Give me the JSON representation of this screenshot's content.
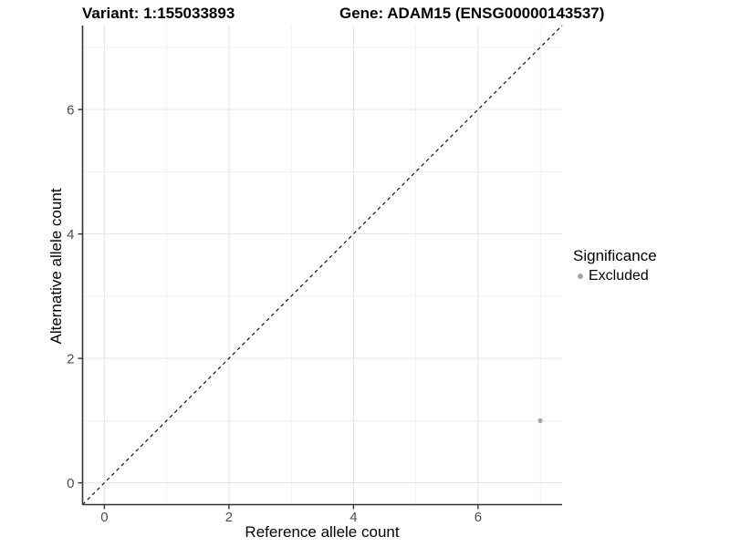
{
  "titles": {
    "variant": "Variant: 1:155033893",
    "gene": "Gene: ADAM15 (ENSG00000143537)"
  },
  "axes": {
    "x_label": "Reference allele count",
    "y_label": "Alternative allele count"
  },
  "legend": {
    "title": "Significance",
    "items": [
      {
        "label": "Excluded",
        "color": "#a5a5a5"
      }
    ]
  },
  "colors": {
    "background": "#ffffff",
    "grid_major": "#e4e4e4",
    "grid_minor": "#f1f1f1",
    "axis_line": "#333333",
    "tick_mark": "#333333",
    "tick_label": "#4d4d4d",
    "identity_line": "#000000",
    "point": "#a5a5a5"
  },
  "chart_data": {
    "type": "scatter",
    "title": "Variant: 1:155033893   Gene: ADAM15 (ENSG00000143537)",
    "xlabel": "Reference allele count",
    "ylabel": "Alternative allele count",
    "xlim": [
      -0.35,
      7.35
    ],
    "ylim": [
      -0.35,
      7.35
    ],
    "x_ticks": [
      0,
      2,
      4,
      6
    ],
    "y_ticks": [
      0,
      2,
      4,
      6
    ],
    "x_minor_gridlines": [
      1,
      3,
      5,
      7
    ],
    "y_minor_gridlines": [
      1,
      3,
      5,
      7
    ],
    "grid": true,
    "legend_position": "right",
    "legend_title": "Significance",
    "series": [
      {
        "name": "Excluded",
        "color": "#a5a5a5",
        "points": [
          {
            "x": 7,
            "y": 1
          }
        ]
      }
    ],
    "reference_line": {
      "description": "identity line y = x",
      "style": "dashed",
      "color": "#000000",
      "slope": 1,
      "intercept": 0
    }
  }
}
